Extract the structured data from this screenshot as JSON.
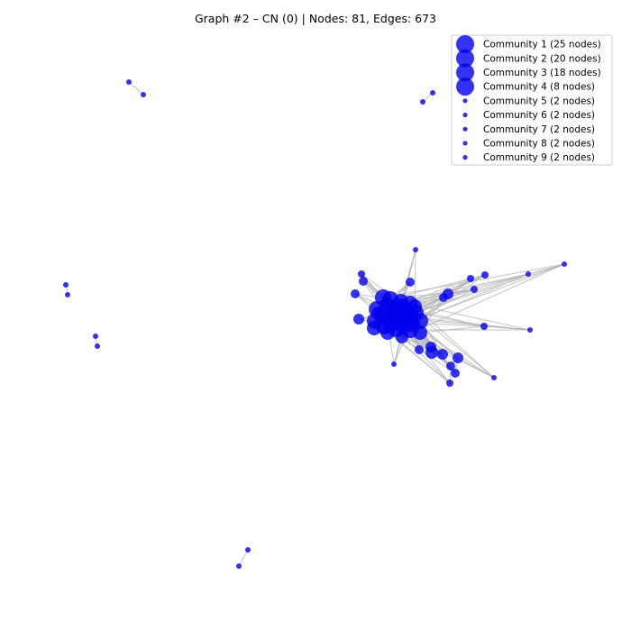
{
  "figure": {
    "title": "Graph #2 – CN (0) | Nodes: 81, Edges: 673",
    "node_color": "#0000ee",
    "edge_color": "#b0b0b0"
  },
  "legend": {
    "placement": "top-right",
    "items": [
      {
        "label": "Community 1 (25 nodes)",
        "marker": "large"
      },
      {
        "label": "Community 2 (20 nodes)",
        "marker": "large"
      },
      {
        "label": "Community 3 (18 nodes)",
        "marker": "large"
      },
      {
        "label": "Community 4 (8 nodes)",
        "marker": "large"
      },
      {
        "label": "Community 5 (2 nodes)",
        "marker": "small"
      },
      {
        "label": "Community 6 (2 nodes)",
        "marker": "small"
      },
      {
        "label": "Community 7 (2 nodes)",
        "marker": "small"
      },
      {
        "label": "Community 8 (2 nodes)",
        "marker": "small"
      },
      {
        "label": "Community 9 (2 nodes)",
        "marker": "small"
      }
    ]
  }
}
